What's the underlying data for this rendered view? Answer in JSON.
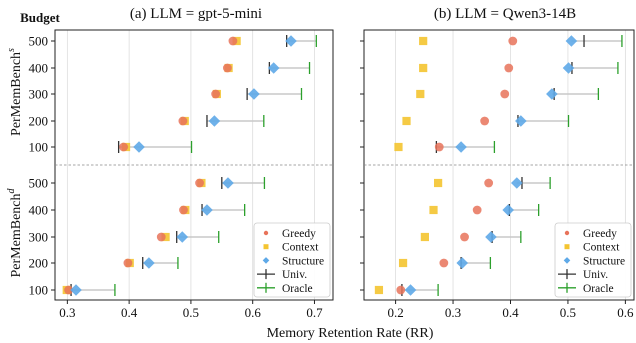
{
  "chart_data": {
    "type": "scatter",
    "figure": {
      "row_axis_title": "Budget",
      "xlabel": "Memory Retention Rate (RR)",
      "row_labels": [
        "PerMemBench^s",
        "PerMemBench^d"
      ],
      "budget_levels": [
        "500",
        "400",
        "300",
        "200",
        "100"
      ],
      "legend_entries": [
        {
          "name": "Greedy",
          "marker": "dot",
          "color": "#e8735a"
        },
        {
          "name": "Context",
          "marker": "square",
          "color": "#f4c430"
        },
        {
          "name": "Structure",
          "marker": "diamond",
          "color": "#5ea9e8"
        },
        {
          "name": "Univ.",
          "marker": "cross",
          "color": "#333333"
        },
        {
          "name": "Oracle",
          "marker": "cross",
          "color": "#2ca02c"
        }
      ],
      "colors": {
        "greedy": "#e8735a",
        "context": "#f4c430",
        "structure": "#5ea9e8",
        "univ": "#333333",
        "oracle": "#2ca02c",
        "range_line": "#c8c8c8",
        "grid": "#dddddd",
        "separator": "#888888"
      }
    },
    "panels": [
      {
        "title": "(a) LLM = gpt-5-mini",
        "xlim": [
          0.28,
          0.73
        ],
        "xticks": [
          0.3,
          0.4,
          0.5,
          0.6,
          0.7
        ],
        "xtick_labels": [
          "0.3",
          "0.4",
          "0.5",
          "0.6",
          "0.7"
        ],
        "grid": true,
        "legend": "lower-right",
        "rows": {
          "s": [
            {
              "budget": "500",
              "greedy": 0.568,
              "context": 0.574,
              "structure": 0.662,
              "univ": 0.655,
              "oracle": 0.703
            },
            {
              "budget": "400",
              "greedy": 0.559,
              "context": 0.561,
              "structure": 0.634,
              "univ": 0.627,
              "oracle": 0.692
            },
            {
              "budget": "300",
              "greedy": 0.54,
              "context": 0.542,
              "structure": 0.602,
              "univ": 0.591,
              "oracle": 0.679
            },
            {
              "budget": "200",
              "greedy": 0.487,
              "context": 0.49,
              "structure": 0.538,
              "univ": 0.526,
              "oracle": 0.618
            },
            {
              "budget": "100",
              "greedy": 0.391,
              "context": 0.395,
              "structure": 0.416,
              "univ": 0.383,
              "oracle": 0.501
            }
          ],
          "d": [
            {
              "budget": "500",
              "greedy": 0.514,
              "context": 0.517,
              "structure": 0.56,
              "univ": 0.55,
              "oracle": 0.619
            },
            {
              "budget": "400",
              "greedy": 0.488,
              "context": 0.491,
              "structure": 0.526,
              "univ": 0.518,
              "oracle": 0.587
            },
            {
              "budget": "300",
              "greedy": 0.452,
              "context": 0.459,
              "structure": 0.486,
              "univ": 0.477,
              "oracle": 0.545
            },
            {
              "budget": "200",
              "greedy": 0.398,
              "context": 0.401,
              "structure": 0.432,
              "univ": 0.422,
              "oracle": 0.479
            },
            {
              "budget": "100",
              "greedy": 0.302,
              "context": 0.299,
              "structure": 0.314,
              "univ": 0.306,
              "oracle": 0.377
            }
          ]
        }
      },
      {
        "title": "(b) LLM = Qwen3-14B",
        "xlim": [
          0.145,
          0.615
        ],
        "xticks": [
          0.2,
          0.3,
          0.4,
          0.5,
          0.6
        ],
        "xtick_labels": [
          "0.2",
          "0.3",
          "0.4",
          "0.5",
          "0.6"
        ],
        "grid": true,
        "legend": "lower-right",
        "rows": {
          "s": [
            {
              "budget": "500",
              "greedy": 0.404,
              "context": 0.248,
              "structure": 0.506,
              "univ": 0.528,
              "oracle": 0.594
            },
            {
              "budget": "400",
              "greedy": 0.397,
              "context": 0.248,
              "structure": 0.501,
              "univ": 0.507,
              "oracle": 0.587
            },
            {
              "budget": "300",
              "greedy": 0.39,
              "context": 0.243,
              "structure": 0.472,
              "univ": 0.476,
              "oracle": 0.553
            },
            {
              "budget": "200",
              "greedy": 0.355,
              "context": 0.219,
              "structure": 0.418,
              "univ": 0.413,
              "oracle": 0.501
            },
            {
              "budget": "100",
              "greedy": 0.276,
              "context": 0.205,
              "structure": 0.314,
              "univ": 0.271,
              "oracle": 0.372
            }
          ],
          "d": [
            {
              "budget": "500",
              "greedy": 0.362,
              "context": 0.274,
              "structure": 0.411,
              "univ": 0.42,
              "oracle": 0.469
            },
            {
              "budget": "400",
              "greedy": 0.342,
              "context": 0.266,
              "structure": 0.396,
              "univ": 0.398,
              "oracle": 0.449
            },
            {
              "budget": "300",
              "greedy": 0.32,
              "context": 0.251,
              "structure": 0.366,
              "univ": 0.368,
              "oracle": 0.418
            },
            {
              "budget": "200",
              "greedy": 0.284,
              "context": 0.213,
              "structure": 0.316,
              "univ": 0.314,
              "oracle": 0.365
            },
            {
              "budget": "100",
              "greedy": 0.209,
              "context": 0.171,
              "structure": 0.226,
              "univ": 0.211,
              "oracle": 0.274
            }
          ]
        }
      }
    ]
  }
}
